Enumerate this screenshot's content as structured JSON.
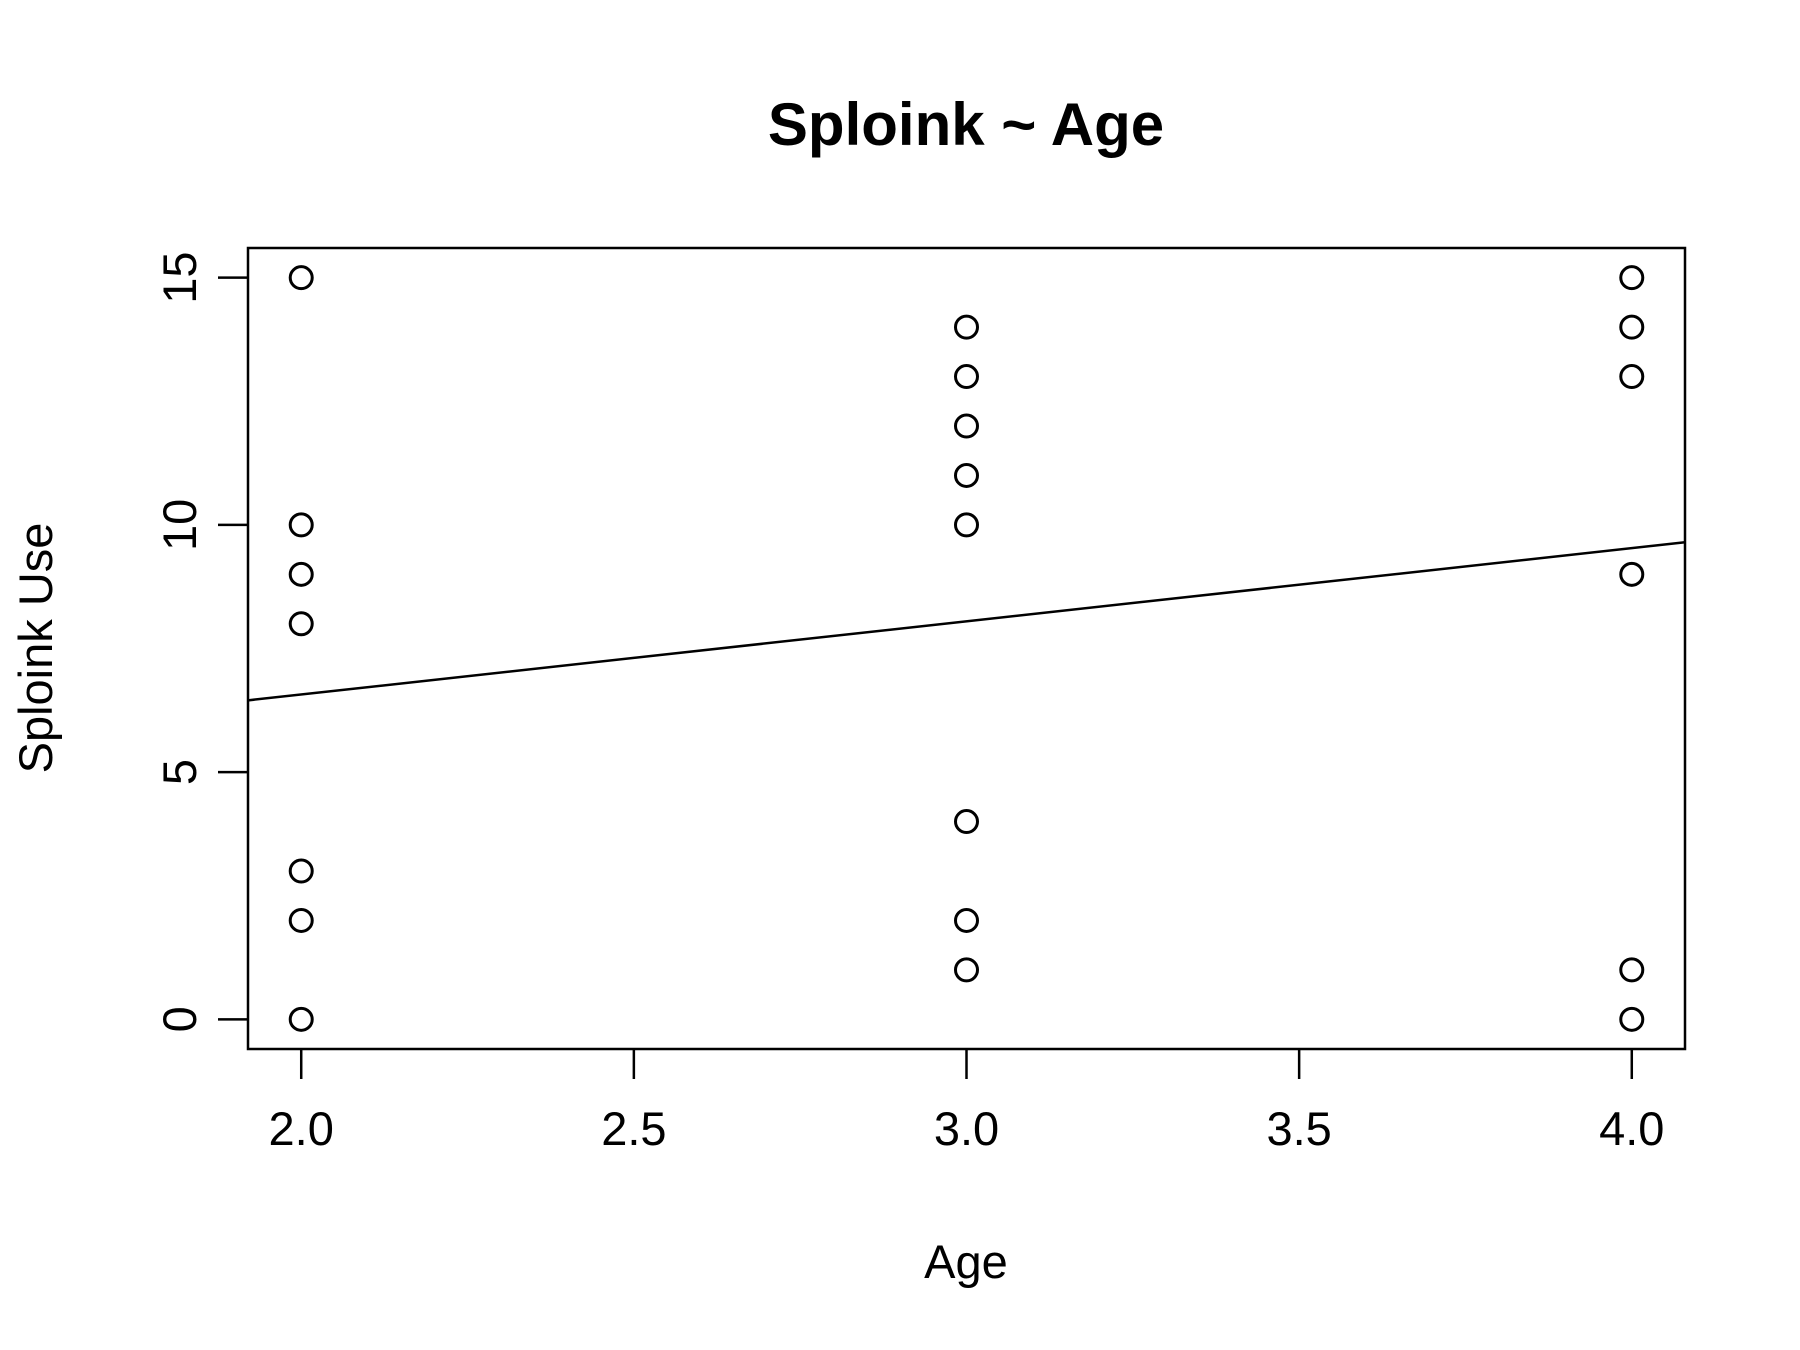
{
  "chart_data": {
    "type": "scatter",
    "title": "Sploink ~ Age",
    "xlabel": "Age",
    "ylabel": "Sploink Use",
    "xlim": [
      1.92,
      4.08
    ],
    "ylim": [
      -0.6,
      15.6
    ],
    "x_ticks": [
      2.0,
      2.5,
      3.0,
      3.5,
      4.0
    ],
    "x_tick_labels": [
      "2.0",
      "2.5",
      "3.0",
      "3.5",
      "4.0"
    ],
    "y_ticks": [
      0,
      5,
      10,
      15
    ],
    "y_tick_labels": [
      "0",
      "5",
      "10",
      "15"
    ],
    "points": {
      "x": [
        2,
        2,
        2,
        2,
        2,
        2,
        2,
        3,
        3,
        3,
        3,
        3,
        3,
        3,
        3,
        4,
        4,
        4,
        4,
        4,
        4
      ],
      "y": [
        15,
        10,
        9,
        8,
        3,
        2,
        0,
        14,
        13,
        12,
        11,
        10,
        4,
        2,
        1,
        15,
        14,
        13,
        9,
        1,
        0
      ]
    },
    "regression_line": {
      "intercept": 3.61,
      "slope": 1.48
    },
    "grid": false,
    "legend": "none",
    "colors": {
      "points": "#000000",
      "line": "#000000",
      "background": "#ffffff"
    }
  }
}
